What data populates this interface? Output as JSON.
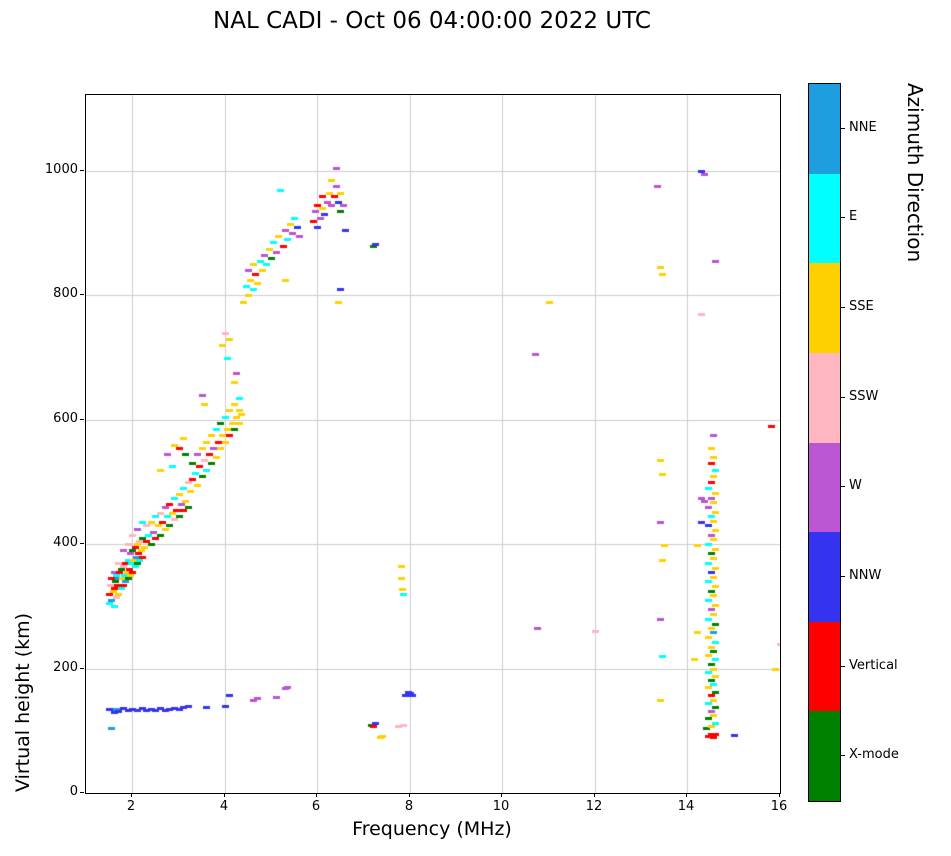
{
  "chart_data": {
    "type": "scatter",
    "title": "NAL CADI - Oct 06 04:00:00 2022 UTC",
    "xlabel": "Frequency (MHz)",
    "ylabel": "Virtual height (km)",
    "legend_title": "Azimuth Direction",
    "legend_position": "right",
    "grid": true,
    "grid_color": "#cccccc",
    "xlim": [
      1,
      16
    ],
    "ylim": [
      0,
      1122
    ],
    "xticks": [
      2,
      4,
      6,
      8,
      10,
      12,
      14,
      16
    ],
    "yticks": [
      0,
      200,
      400,
      600,
      800,
      1000
    ],
    "marker": {
      "width": 7,
      "height": 3
    },
    "categories": [
      {
        "name": "NNE",
        "color": "#1E9EDE"
      },
      {
        "name": "E",
        "color": "#00FFFF"
      },
      {
        "name": "SSE",
        "color": "#FFD000"
      },
      {
        "name": "SSW",
        "color": "#FFB6C1"
      },
      {
        "name": "W",
        "color": "#BA55D3"
      },
      {
        "name": "NNW",
        "color": "#3434F0"
      },
      {
        "name": "Vertical",
        "color": "#FF0000"
      },
      {
        "name": "X-mode",
        "color": "#008000"
      }
    ],
    "points": [
      [
        1.5,
        305,
        1
      ],
      [
        1.5,
        320,
        6
      ],
      [
        1.52,
        335,
        3
      ],
      [
        1.55,
        310,
        0
      ],
      [
        1.55,
        345,
        6
      ],
      [
        1.58,
        325,
        2
      ],
      [
        1.6,
        300,
        1
      ],
      [
        1.6,
        330,
        6
      ],
      [
        1.6,
        355,
        4
      ],
      [
        1.62,
        340,
        7
      ],
      [
        1.65,
        315,
        3
      ],
      [
        1.65,
        350,
        1
      ],
      [
        1.68,
        335,
        6
      ],
      [
        1.7,
        320,
        2
      ],
      [
        1.7,
        345,
        0
      ],
      [
        1.7,
        370,
        3
      ],
      [
        1.72,
        355,
        6
      ],
      [
        1.75,
        330,
        1
      ],
      [
        1.75,
        360,
        7
      ],
      [
        1.78,
        345,
        2
      ],
      [
        1.8,
        335,
        6
      ],
      [
        1.8,
        365,
        3
      ],
      [
        1.8,
        390,
        4
      ],
      [
        1.82,
        350,
        1
      ],
      [
        1.85,
        340,
        0
      ],
      [
        1.85,
        370,
        6
      ],
      [
        1.88,
        355,
        2
      ],
      [
        1.9,
        345,
        7
      ],
      [
        1.9,
        375,
        1
      ],
      [
        1.9,
        400,
        3
      ],
      [
        1.92,
        360,
        6
      ],
      [
        1.95,
        350,
        2
      ],
      [
        1.95,
        385,
        4
      ],
      [
        1.98,
        370,
        1
      ],
      [
        2.0,
        355,
        6
      ],
      [
        2.0,
        390,
        7
      ],
      [
        2.0,
        415,
        3
      ],
      [
        2.02,
        375,
        2
      ],
      [
        2.05,
        365,
        1
      ],
      [
        2.05,
        395,
        6
      ],
      [
        2.08,
        380,
        0
      ],
      [
        2.1,
        370,
        7
      ],
      [
        2.1,
        400,
        2
      ],
      [
        2.1,
        425,
        4
      ],
      [
        2.12,
        385,
        6
      ],
      [
        2.15,
        375,
        1
      ],
      [
        2.15,
        405,
        3
      ],
      [
        2.18,
        390,
        2
      ],
      [
        2.2,
        380,
        6
      ],
      [
        2.2,
        410,
        7
      ],
      [
        2.2,
        435,
        1
      ],
      [
        2.25,
        395,
        2
      ],
      [
        2.3,
        405,
        6
      ],
      [
        2.3,
        430,
        3
      ],
      [
        2.35,
        415,
        1
      ],
      [
        2.4,
        400,
        7
      ],
      [
        2.4,
        435,
        2
      ],
      [
        2.45,
        420,
        4
      ],
      [
        2.5,
        410,
        6
      ],
      [
        2.5,
        445,
        1
      ],
      [
        2.55,
        430,
        2
      ],
      [
        2.6,
        415,
        7
      ],
      [
        2.6,
        450,
        3
      ],
      [
        2.6,
        520,
        2
      ],
      [
        2.65,
        435,
        6
      ],
      [
        2.7,
        425,
        2
      ],
      [
        2.7,
        460,
        4
      ],
      [
        2.75,
        445,
        1
      ],
      [
        2.75,
        545,
        4
      ],
      [
        2.8,
        430,
        7
      ],
      [
        2.8,
        465,
        6
      ],
      [
        2.85,
        450,
        2
      ],
      [
        2.85,
        525,
        1
      ],
      [
        2.9,
        440,
        3
      ],
      [
        2.9,
        475,
        1
      ],
      [
        2.9,
        560,
        2
      ],
      [
        2.95,
        455,
        6
      ],
      [
        3.0,
        445,
        7
      ],
      [
        3.0,
        480,
        2
      ],
      [
        3.0,
        555,
        6
      ],
      [
        3.05,
        465,
        4
      ],
      [
        3.1,
        455,
        6
      ],
      [
        3.1,
        490,
        1
      ],
      [
        3.1,
        570,
        2
      ],
      [
        3.15,
        470,
        2
      ],
      [
        3.15,
        545,
        7
      ],
      [
        3.2,
        460,
        7
      ],
      [
        3.2,
        500,
        3
      ],
      [
        3.25,
        485,
        2
      ],
      [
        3.3,
        505,
        6
      ],
      [
        3.3,
        530,
        7
      ],
      [
        3.35,
        515,
        1
      ],
      [
        3.4,
        495,
        2
      ],
      [
        3.4,
        545,
        4
      ],
      [
        3.45,
        525,
        6
      ],
      [
        3.5,
        510,
        7
      ],
      [
        3.5,
        555,
        2
      ],
      [
        3.5,
        640,
        4
      ],
      [
        3.55,
        535,
        3
      ],
      [
        3.55,
        625,
        2
      ],
      [
        3.6,
        520,
        1
      ],
      [
        3.6,
        565,
        2
      ],
      [
        3.65,
        545,
        6
      ],
      [
        3.7,
        530,
        7
      ],
      [
        3.7,
        575,
        2
      ],
      [
        3.75,
        555,
        4
      ],
      [
        3.8,
        540,
        2
      ],
      [
        3.8,
        585,
        1
      ],
      [
        3.85,
        565,
        6
      ],
      [
        3.9,
        555,
        2
      ],
      [
        3.9,
        595,
        7
      ],
      [
        3.95,
        575,
        2
      ],
      [
        3.95,
        720,
        2
      ],
      [
        4.0,
        565,
        2
      ],
      [
        4.0,
        605,
        1
      ],
      [
        4.0,
        740,
        3
      ],
      [
        4.05,
        585,
        2
      ],
      [
        4.05,
        700,
        1
      ],
      [
        4.1,
        575,
        6
      ],
      [
        4.1,
        615,
        2
      ],
      [
        4.1,
        730,
        2
      ],
      [
        4.15,
        595,
        2
      ],
      [
        4.2,
        585,
        7
      ],
      [
        4.2,
        625,
        2
      ],
      [
        4.2,
        660,
        2
      ],
      [
        4.25,
        605,
        2
      ],
      [
        4.25,
        675,
        4
      ],
      [
        4.3,
        595,
        2
      ],
      [
        4.3,
        615,
        2
      ],
      [
        4.3,
        635,
        1
      ],
      [
        4.35,
        610,
        2
      ],
      [
        4.4,
        790,
        2
      ],
      [
        4.45,
        815,
        1
      ],
      [
        4.5,
        800,
        2
      ],
      [
        4.5,
        840,
        4
      ],
      [
        4.55,
        825,
        2
      ],
      [
        4.6,
        810,
        1
      ],
      [
        4.6,
        850,
        2
      ],
      [
        4.65,
        835,
        6
      ],
      [
        4.7,
        820,
        2
      ],
      [
        4.75,
        855,
        1
      ],
      [
        4.8,
        840,
        2
      ],
      [
        4.85,
        865,
        4
      ],
      [
        4.9,
        850,
        1
      ],
      [
        4.95,
        875,
        2
      ],
      [
        5.0,
        860,
        7
      ],
      [
        5.05,
        885,
        1
      ],
      [
        5.1,
        870,
        4
      ],
      [
        5.15,
        895,
        2
      ],
      [
        5.2,
        970,
        1
      ],
      [
        5.25,
        880,
        6
      ],
      [
        5.3,
        825,
        2
      ],
      [
        5.3,
        905,
        4
      ],
      [
        5.35,
        890,
        1
      ],
      [
        5.4,
        915,
        2
      ],
      [
        5.45,
        900,
        4
      ],
      [
        5.5,
        925,
        1
      ],
      [
        5.55,
        910,
        5
      ],
      [
        5.6,
        895,
        4
      ],
      [
        5.9,
        920,
        6
      ],
      [
        5.95,
        935,
        4
      ],
      [
        6.0,
        910,
        5
      ],
      [
        6.0,
        945,
        6
      ],
      [
        6.05,
        925,
        4
      ],
      [
        6.1,
        940,
        2
      ],
      [
        6.1,
        960,
        6
      ],
      [
        6.15,
        930,
        5
      ],
      [
        6.2,
        950,
        4
      ],
      [
        6.25,
        965,
        2
      ],
      [
        6.3,
        945,
        4
      ],
      [
        6.3,
        985,
        2
      ],
      [
        6.35,
        960,
        6
      ],
      [
        6.4,
        975,
        4
      ],
      [
        6.4,
        1005,
        4
      ],
      [
        6.45,
        950,
        5
      ],
      [
        6.45,
        790,
        2
      ],
      [
        6.5,
        935,
        7
      ],
      [
        6.5,
        965,
        2
      ],
      [
        6.5,
        810,
        5
      ],
      [
        6.55,
        945,
        4
      ],
      [
        6.6,
        905,
        5
      ],
      [
        7.2,
        880,
        7
      ],
      [
        7.25,
        882,
        5
      ],
      [
        1.5,
        135,
        5
      ],
      [
        1.55,
        105,
        0
      ],
      [
        1.6,
        130,
        5
      ],
      [
        1.65,
        135,
        0
      ],
      [
        1.7,
        132,
        5
      ],
      [
        1.8,
        136,
        5
      ],
      [
        1.9,
        133,
        5
      ],
      [
        2.0,
        135,
        5
      ],
      [
        2.1,
        134,
        5
      ],
      [
        2.2,
        136,
        5
      ],
      [
        2.3,
        133,
        5
      ],
      [
        2.4,
        135,
        5
      ],
      [
        2.5,
        134,
        5
      ],
      [
        2.6,
        136,
        5
      ],
      [
        2.7,
        134,
        5
      ],
      [
        2.8,
        135,
        5
      ],
      [
        2.9,
        137,
        5
      ],
      [
        3.0,
        135,
        5
      ],
      [
        3.1,
        138,
        5
      ],
      [
        3.2,
        140,
        5
      ],
      [
        3.6,
        138,
        5
      ],
      [
        4.0,
        140,
        5
      ],
      [
        4.1,
        157,
        5
      ],
      [
        4.6,
        150,
        4
      ],
      [
        4.7,
        152,
        4
      ],
      [
        5.1,
        155,
        4
      ],
      [
        5.3,
        168,
        4
      ],
      [
        5.35,
        170,
        4
      ],
      [
        7.15,
        110,
        7
      ],
      [
        7.2,
        108,
        6
      ],
      [
        7.25,
        112,
        5
      ],
      [
        7.35,
        90,
        2
      ],
      [
        7.4,
        92,
        2
      ],
      [
        7.75,
        108,
        3
      ],
      [
        7.85,
        110,
        3
      ],
      [
        7.9,
        158,
        5
      ],
      [
        7.95,
        162,
        5
      ],
      [
        8.0,
        160,
        5
      ],
      [
        8.05,
        158,
        5
      ],
      [
        7.8,
        365,
        2
      ],
      [
        7.8,
        345,
        2
      ],
      [
        7.82,
        328,
        2
      ],
      [
        7.85,
        320,
        1
      ],
      [
        10.7,
        705,
        4
      ],
      [
        10.75,
        265,
        4
      ],
      [
        11.0,
        790,
        2
      ],
      [
        12.0,
        260,
        3
      ],
      [
        13.35,
        975,
        4
      ],
      [
        13.4,
        845,
        2
      ],
      [
        13.45,
        835,
        2
      ],
      [
        13.4,
        535,
        2
      ],
      [
        13.45,
        512,
        2
      ],
      [
        13.4,
        435,
        4
      ],
      [
        13.45,
        375,
        2
      ],
      [
        13.4,
        280,
        4
      ],
      [
        13.45,
        220,
        1
      ],
      [
        13.4,
        150,
        2
      ],
      [
        13.5,
        398,
        2
      ],
      [
        14.3,
        1000,
        5
      ],
      [
        14.35,
        995,
        4
      ],
      [
        14.6,
        855,
        4
      ],
      [
        14.3,
        770,
        3
      ],
      [
        14.3,
        475,
        4
      ],
      [
        14.35,
        470,
        4
      ],
      [
        14.3,
        435,
        5
      ],
      [
        14.2,
        398,
        2
      ],
      [
        14.2,
        258,
        2
      ],
      [
        14.15,
        215,
        2
      ],
      [
        15.0,
        93,
        5
      ],
      [
        15.8,
        590,
        6
      ],
      [
        16.0,
        240,
        3
      ],
      [
        15.9,
        200,
        2
      ],
      [
        14.45,
        92,
        6
      ],
      [
        14.5,
        95,
        6
      ],
      [
        14.55,
        90,
        6
      ],
      [
        14.6,
        95,
        6
      ],
      [
        14.4,
        105,
        7
      ],
      [
        14.5,
        108,
        2
      ],
      [
        14.6,
        112,
        1
      ],
      [
        14.45,
        120,
        7
      ],
      [
        14.55,
        125,
        2
      ],
      [
        14.5,
        132,
        4
      ],
      [
        14.6,
        138,
        7
      ],
      [
        14.45,
        145,
        1
      ],
      [
        14.55,
        150,
        2
      ],
      [
        14.5,
        158,
        6
      ],
      [
        14.6,
        162,
        7
      ],
      [
        14.45,
        170,
        2
      ],
      [
        14.55,
        175,
        1
      ],
      [
        14.5,
        182,
        7
      ],
      [
        14.6,
        188,
        2
      ],
      [
        14.45,
        195,
        1
      ],
      [
        14.55,
        200,
        2
      ],
      [
        14.5,
        208,
        7
      ],
      [
        14.6,
        215,
        1
      ],
      [
        14.45,
        222,
        2
      ],
      [
        14.55,
        228,
        7
      ],
      [
        14.5,
        235,
        2
      ],
      [
        14.6,
        242,
        1
      ],
      [
        14.45,
        250,
        2
      ],
      [
        14.55,
        258,
        0
      ],
      [
        14.5,
        265,
        2
      ],
      [
        14.6,
        272,
        7
      ],
      [
        14.45,
        280,
        1
      ],
      [
        14.55,
        288,
        2
      ],
      [
        14.5,
        295,
        4
      ],
      [
        14.6,
        302,
        2
      ],
      [
        14.45,
        310,
        1
      ],
      [
        14.55,
        318,
        2
      ],
      [
        14.5,
        325,
        7
      ],
      [
        14.6,
        332,
        2
      ],
      [
        14.45,
        340,
        1
      ],
      [
        14.55,
        348,
        2
      ],
      [
        14.5,
        355,
        5
      ],
      [
        14.6,
        362,
        2
      ],
      [
        14.45,
        370,
        1
      ],
      [
        14.55,
        378,
        2
      ],
      [
        14.5,
        385,
        7
      ],
      [
        14.6,
        392,
        2
      ],
      [
        14.45,
        400,
        1
      ],
      [
        14.55,
        408,
        2
      ],
      [
        14.5,
        415,
        4
      ],
      [
        14.6,
        422,
        2
      ],
      [
        14.45,
        430,
        5
      ],
      [
        14.55,
        438,
        2
      ],
      [
        14.5,
        445,
        1
      ],
      [
        14.6,
        452,
        2
      ],
      [
        14.45,
        460,
        4
      ],
      [
        14.55,
        468,
        2
      ],
      [
        14.5,
        475,
        4
      ],
      [
        14.6,
        482,
        2
      ],
      [
        14.45,
        490,
        1
      ],
      [
        14.5,
        500,
        6
      ],
      [
        14.55,
        510,
        2
      ],
      [
        14.6,
        520,
        1
      ],
      [
        14.5,
        530,
        6
      ],
      [
        14.55,
        540,
        2
      ],
      [
        14.5,
        555,
        2
      ],
      [
        14.55,
        575,
        4
      ]
    ]
  }
}
